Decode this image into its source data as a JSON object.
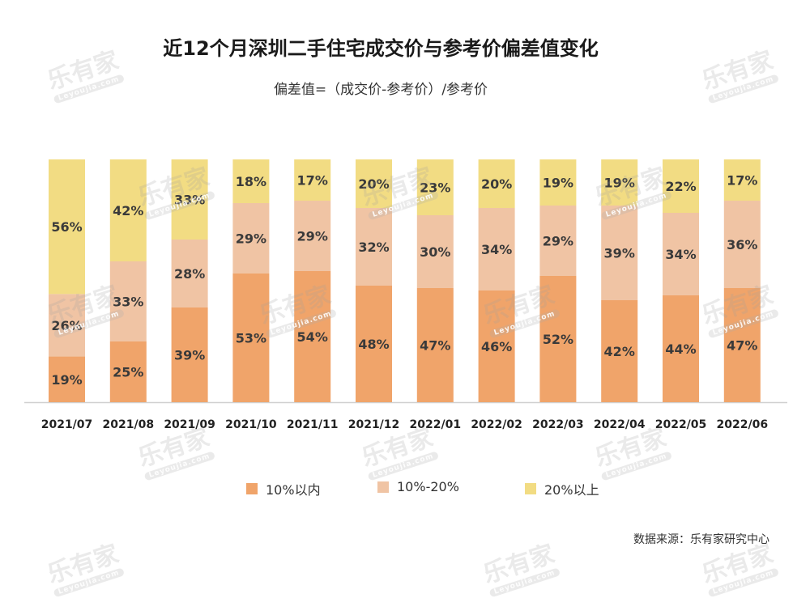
{
  "title": "近12个月深圳二手住宅成交价与参考价偏差值变化",
  "subtitle": "偏差值=（成交价-参考价）/参考价",
  "source": "数据来源：乐有家研究中心",
  "watermark": {
    "text": "乐有家",
    "sub": "Leyoujia.com"
  },
  "colors": {
    "s1": "#F0A46A",
    "s2": "#F0C4A4",
    "s3": "#F2DC83",
    "axis": "#d0d0d0"
  },
  "chart_data": {
    "type": "bar",
    "stacked": true,
    "percent_stacked": true,
    "categories": [
      "2021/07",
      "2021/08",
      "2021/09",
      "2021/10",
      "2021/11",
      "2021/12",
      "2022/01",
      "2022/02",
      "2022/03",
      "2022/04",
      "2022/05",
      "2022/06"
    ],
    "series": [
      {
        "name": "10%以内",
        "values": [
          19,
          25,
          39,
          53,
          54,
          48,
          47,
          46,
          52,
          42,
          44,
          47
        ],
        "labels": [
          "19%",
          "25%",
          "39%",
          "53%",
          "54%",
          "48%",
          "47%",
          "46%",
          "52%",
          "42%",
          "44%",
          "47%"
        ]
      },
      {
        "name": "10%-20%",
        "values": [
          26,
          33,
          28,
          29,
          29,
          32,
          30,
          34,
          29,
          39,
          34,
          36
        ],
        "labels": [
          "26%",
          "33%",
          "28%",
          "29%",
          "29%",
          "32%",
          "30%",
          "34%",
          "29%",
          "39%",
          "34%",
          "36%"
        ]
      },
      {
        "name": "20%以上",
        "values": [
          56,
          42,
          33,
          18,
          17,
          20,
          23,
          20,
          19,
          19,
          22,
          17
        ],
        "labels": [
          "56%",
          "42%",
          "33%",
          "18%",
          "17%",
          "20%",
          "23%",
          "20%",
          "19%",
          "19%",
          "22%",
          "17%"
        ]
      }
    ],
    "legend_position": "bottom",
    "grid": false
  }
}
